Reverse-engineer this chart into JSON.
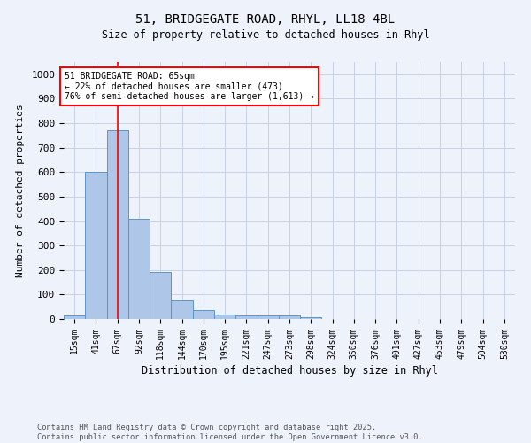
{
  "title_line1": "51, BRIDGEGATE ROAD, RHYL, LL18 4BL",
  "title_line2": "Size of property relative to detached houses in Rhyl",
  "xlabel": "Distribution of detached houses by size in Rhyl",
  "ylabel": "Number of detached properties",
  "bin_labels": [
    "15sqm",
    "41sqm",
    "67sqm",
    "92sqm",
    "118sqm",
    "144sqm",
    "170sqm",
    "195sqm",
    "221sqm",
    "247sqm",
    "273sqm",
    "298sqm",
    "324sqm",
    "350sqm",
    "376sqm",
    "401sqm",
    "427sqm",
    "453sqm",
    "479sqm",
    "504sqm",
    "530sqm"
  ],
  "bar_values": [
    15,
    600,
    770,
    410,
    193,
    75,
    38,
    18,
    15,
    13,
    13,
    6,
    0,
    0,
    0,
    0,
    0,
    0,
    0,
    0,
    0
  ],
  "bar_color": "#aec6e8",
  "bar_edge_color": "#5a96c8",
  "vline_x": 2,
  "vline_color": "red",
  "annotation_text": "51 BRIDGEGATE ROAD: 65sqm\n← 22% of detached houses are smaller (473)\n76% of semi-detached houses are larger (1,613) →",
  "annotation_box_color": "white",
  "annotation_box_edge_color": "red",
  "ylim": [
    0,
    1050
  ],
  "yticks": [
    0,
    100,
    200,
    300,
    400,
    500,
    600,
    700,
    800,
    900,
    1000
  ],
  "footnote": "Contains HM Land Registry data © Crown copyright and database right 2025.\nContains public sector information licensed under the Open Government Licence v3.0.",
  "bg_color": "#eef2fb",
  "grid_color": "#c8d0e8"
}
